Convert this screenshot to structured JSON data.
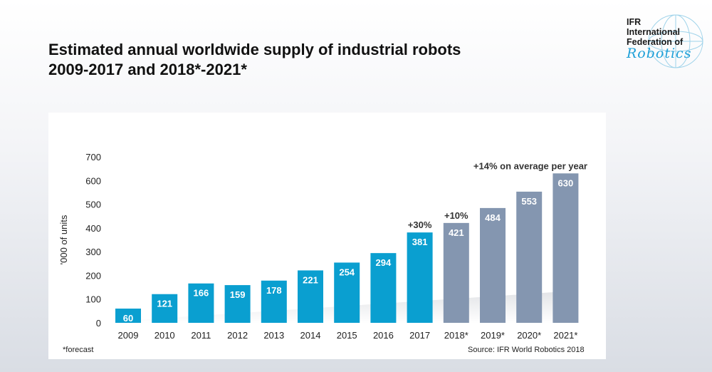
{
  "title_line1": "Estimated annual worldwide supply of industrial robots",
  "title_line2": "2009-2017 and 2018*-2021*",
  "logo": {
    "line1": "IFR",
    "line2": "International",
    "line3": "Federation of",
    "script": "Robotics"
  },
  "footnote": "*forecast",
  "source": "Source: IFR World Robotics 2018",
  "colors": {
    "actual": "#0a9fd0",
    "forecast": "#8496b0"
  },
  "chart_data": {
    "type": "bar",
    "categories": [
      "2009",
      "2010",
      "2011",
      "2012",
      "2013",
      "2014",
      "2015",
      "2016",
      "2017",
      "2018*",
      "2019*",
      "2020*",
      "2021*"
    ],
    "values": [
      60,
      121,
      166,
      159,
      178,
      221,
      254,
      294,
      381,
      421,
      484,
      553,
      630
    ],
    "forecast": [
      false,
      false,
      false,
      false,
      false,
      false,
      false,
      false,
      false,
      true,
      true,
      true,
      true
    ],
    "ylabel": "'000 of units",
    "ylim": [
      0,
      700
    ],
    "yticks": [
      0,
      100,
      200,
      300,
      400,
      500,
      600,
      700
    ],
    "annotations": [
      {
        "category": "2017",
        "text": "+30%"
      },
      {
        "category": "2018*",
        "text": "+10%"
      },
      {
        "category": "2021*",
        "text": "+14% on average per year"
      }
    ],
    "grid": false
  }
}
